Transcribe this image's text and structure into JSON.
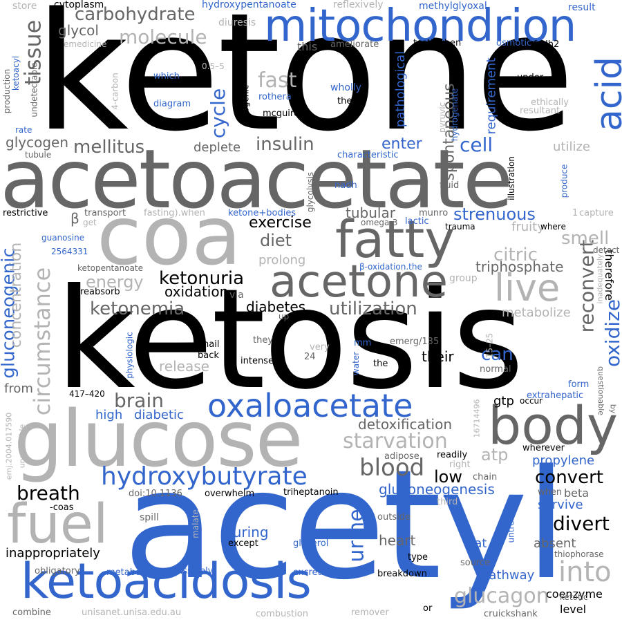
{
  "palette": {
    "black": "#000000",
    "dark_gray": "#666666",
    "light_gray": "#b3b3b3",
    "blue": "#3366cc",
    "background": "#ffffff"
  },
  "words": {
    "ketone": "ketone",
    "ketosis": "ketosis",
    "acetyl": "acetyl",
    "acetoacetate": "acetoacetate",
    "coa": "coa",
    "glucose": "glucose",
    "mitochondrion": "mitochondrion",
    "fatty": "fatty",
    "acetone": "acetone",
    "body": "body",
    "ketoacidosis": "ketoacidosis",
    "fuel": "fuel",
    "oxaloacetate": "oxaloacetate",
    "hydroxybutyrate": "hydroxybutyrate",
    "acid": "acid",
    "live": "live",
    "carbohydrate": "carbohydrate",
    "molecule": "molecule",
    "tissue": "tissue",
    "glycol": "glycol",
    "insulin": "insulin",
    "mellitus": "mellitus",
    "deplete": "deplete",
    "exercise": "exercise",
    "diet": "diet",
    "strenuous": "strenuous",
    "ketonuria": "ketonuria",
    "oxidation": "oxidation",
    "ketonemia": "ketonemia",
    "utilization": "utilization",
    "diabetes": "diabetes",
    "brain": "brain",
    "blood": "blood",
    "starvation": "starvation",
    "convert": "convert",
    "divert": "divert",
    "breath": "breath",
    "gluconeogenesis": "gluconeogenesis",
    "gluconeogenic": "gluconeogenic",
    "circumstance": "circumstance",
    "concentration": "concentration",
    "energy": "energy",
    "smell": "smell",
    "citric": "citric",
    "triphosphate": "triphosphate",
    "cell": "cell",
    "enter": "enter",
    "cycle": "cycle",
    "fast": "fast",
    "glycogen": "glycogen",
    "into": "into",
    "glucagon": "glucagon",
    "heart": "heart",
    "urine": "urine",
    "atp": "atp",
    "low": "low",
    "can": "can",
    "their": "their",
    "oxidize": "oxidize",
    "reconvert": "reconvert",
    "spontaneous": "spontaneous",
    "pathological": "pathological",
    "requirement": "requirement",
    "tubular": "tubular",
    "prolong": "prolong",
    "detoxification": "detoxification",
    "propylene": "propylene",
    "survive": "survive",
    "beta": "beta",
    "absent": "absent",
    "pathway": "pathway",
    "coenzyme": "coenzyme",
    "level": "level",
    "fat": "fat",
    "during": "during",
    "inappropriately": "inappropriately",
    "high": "high",
    "diabetic": "diabetic",
    "from": "from",
    "release": "release",
    "fruity": "fruity",
    "metabolize": "metabolize",
    "gtp": "gtp",
    "utilize": "utilize",
    "therefore": "therefore",
    "store": "store",
    "cytoplasm": "cytoplasm",
    "hydroxypentanoate": "hydroxypentanoate",
    "reflexively": "reflexively",
    "methylglyoxal": "methylglyoxal",
    "result": "result",
    "diuresis": "diuresis",
    "emedicine": "emedicine",
    "ameliorate": "ameliorate",
    "test_when": "test).when",
    "osmotic": "osmotic",
    "fadh2": "fadh2",
    "this": "this",
    "ketoacyl": "ketoacyl",
    "production": "production",
    "undetectable": "undetectable",
    "carbon4": "4-carbon",
    "range": "0.5–5",
    "which": "which",
    "wholly": "wholly",
    "under": "under",
    "diagram": "diagram",
    "rothera": "rothera",
    "then": "then",
    "ethically": "ethically",
    "resultant": "resultant",
    "ketogenic": "ketogenic",
    "mcguire": "mcguire",
    "pyruvic": "pyruvic",
    "hydrogenate": "hydrogenate",
    "rate": "rate",
    "tubule": "tubule",
    "characteristic": "characteristic",
    "glycolysis": "glycolysis",
    "nadh": "nadh",
    "fluid": "fluid",
    "illustration": "illustration",
    "produce": "produce",
    "inadequately": "inadequately",
    "restrictive": "restrictive",
    "transport": "transport",
    "fasting_when": "fasting).when",
    "ketone_bodies": "ketone+bodies",
    "munro": "munro",
    "capture": "capture",
    "one": "1",
    "get": "get",
    "omega3": "omega-3",
    "lactic": "lactic",
    "trauma": "trauma",
    "where": "where",
    "beta_symbol": "β",
    "guanosine": "guanosine",
    "pmid": "2564331",
    "ketopentanoate": "ketopentanoate",
    "beta_oxidation": "β-oxidation.the",
    "detect": "detect",
    "group": "group",
    "reabsorb": "reabsorb",
    "via": "via",
    "up": "up",
    "physiologic": "physiologic",
    "emerg": "emerg/135",
    "range2": "15–25",
    "nail": "nail",
    "back": "back",
    "they": "they",
    "very": "very",
    "intense": "intense",
    "num24": "24",
    "mm": "mm",
    "water": "water",
    "the": "the",
    "normal": "normal",
    "questionable": "questionable",
    "by": "by",
    "form": "form",
    "occur": "occur",
    "extrahepatic": "extrahepatic",
    "pages": "417–420",
    "pmid2": "16714496",
    "doi_emj": "emj.2004.017590",
    "unavailable": "unavailable",
    "readily": "readily",
    "adipose": "adipose",
    "right": "right",
    "wherever": "wherever",
    "chain": "chain",
    "doi": "doi:10.1136",
    "overwhelm": "overwhelm",
    "triheptanoin": "triheptanoin",
    "coas": "-coas",
    "third": "third",
    "when": "when",
    "untreated": "untreated",
    "spill": "spill",
    "malate": "malate",
    "except": "except",
    "outside": "outside",
    "thiophorase": "thiophorase",
    "glycerol": "glycerol",
    "type": "type",
    "source": "source",
    "obligatory": "obligatory",
    "metabolism": "metabolism",
    "passively": "passively",
    "excretion": "excretion",
    "breakdown": "breakdown",
    "ketotic": "ketotic",
    "combine": "combine",
    "unisanet": "unisanet.unisa.edu.au",
    "combustion": "combustion",
    "remover": "remover",
    "or": "or",
    "cruickshank": "cruickshank"
  }
}
